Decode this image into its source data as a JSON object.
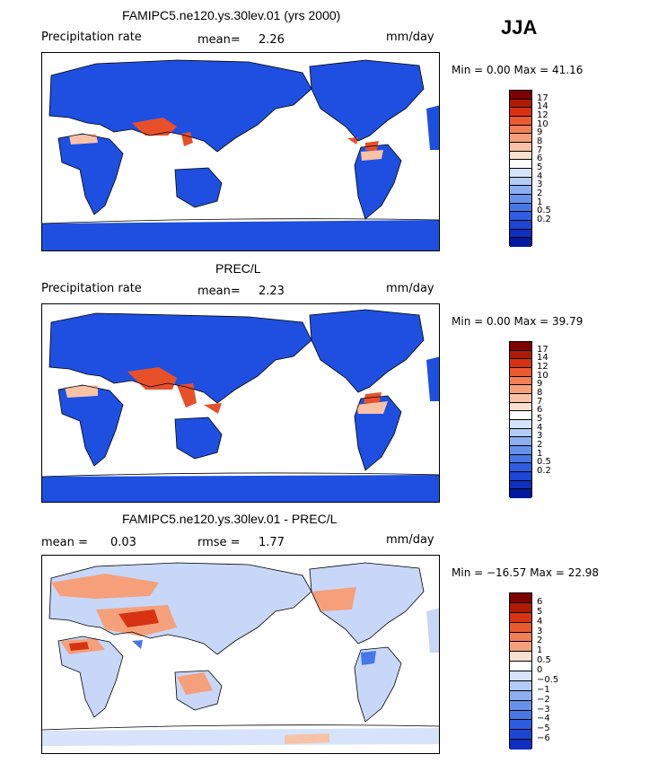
{
  "season": "JJA",
  "palette_pos": [
    "#7f0000",
    "#b01a00",
    "#d83212",
    "#ea5a2f",
    "#f27e56",
    "#f5a07b",
    "#f8c2a6",
    "#fbe0d2",
    "#ffffff",
    "#d6e3fb",
    "#b4cbf6",
    "#8eaef0",
    "#6792ea",
    "#4677e6",
    "#2e5de1",
    "#1c46d6",
    "#0e2fc2",
    "#00199e"
  ],
  "palette_diff": [
    "#7f0000",
    "#b01a00",
    "#d83212",
    "#ea5a2f",
    "#f27e56",
    "#f5a07b",
    "#fbe0d2",
    "#ffffff",
    "#d6e3fb",
    "#b4cbf6",
    "#8eaef0",
    "#6792ea",
    "#4677e6",
    "#2e5de1",
    "#1c46d6",
    "#0e2fc2",
    "#00199e"
  ],
  "panels": [
    {
      "title": "FAMIPC5.ne120.ys.30lev.01 (yrs 2000)",
      "left_label": "Precipitation rate",
      "mean_label": "mean=",
      "mean_value": "2.26",
      "units": "mm/day",
      "minmax": "Min =    0.00 Max =   41.16",
      "colorbar_labels": [
        "17",
        "14",
        "12",
        "10",
        "9",
        "8",
        "7",
        "6",
        "5",
        "4",
        "3",
        "2",
        "1",
        "0.5",
        "0.2"
      ]
    },
    {
      "title": "PREC/L",
      "left_label": "Precipitation rate",
      "mean_label": "mean=",
      "mean_value": "2.23",
      "units": "mm/day",
      "minmax": "Min =    0.00 Max =   39.79",
      "colorbar_labels": [
        "17",
        "14",
        "12",
        "10",
        "9",
        "8",
        "7",
        "6",
        "5",
        "4",
        "3",
        "2",
        "1",
        "0.5",
        "0.2"
      ]
    },
    {
      "title": "FAMIPC5.ne120.ys.30lev.01 - PREC/L",
      "left_label": "mean =",
      "mean_label": "0.03",
      "rmse_label": "rmse =",
      "rmse_value": "1.77",
      "units": "mm/day",
      "minmax": "Min = −16.57 Max =   22.98",
      "colorbar_labels": [
        "6",
        "5",
        "4",
        "3",
        "2",
        "1",
        "0.5",
        "0",
        "−0.5",
        "−1",
        "−2",
        "−3",
        "−4",
        "−5",
        "−6"
      ]
    }
  ]
}
